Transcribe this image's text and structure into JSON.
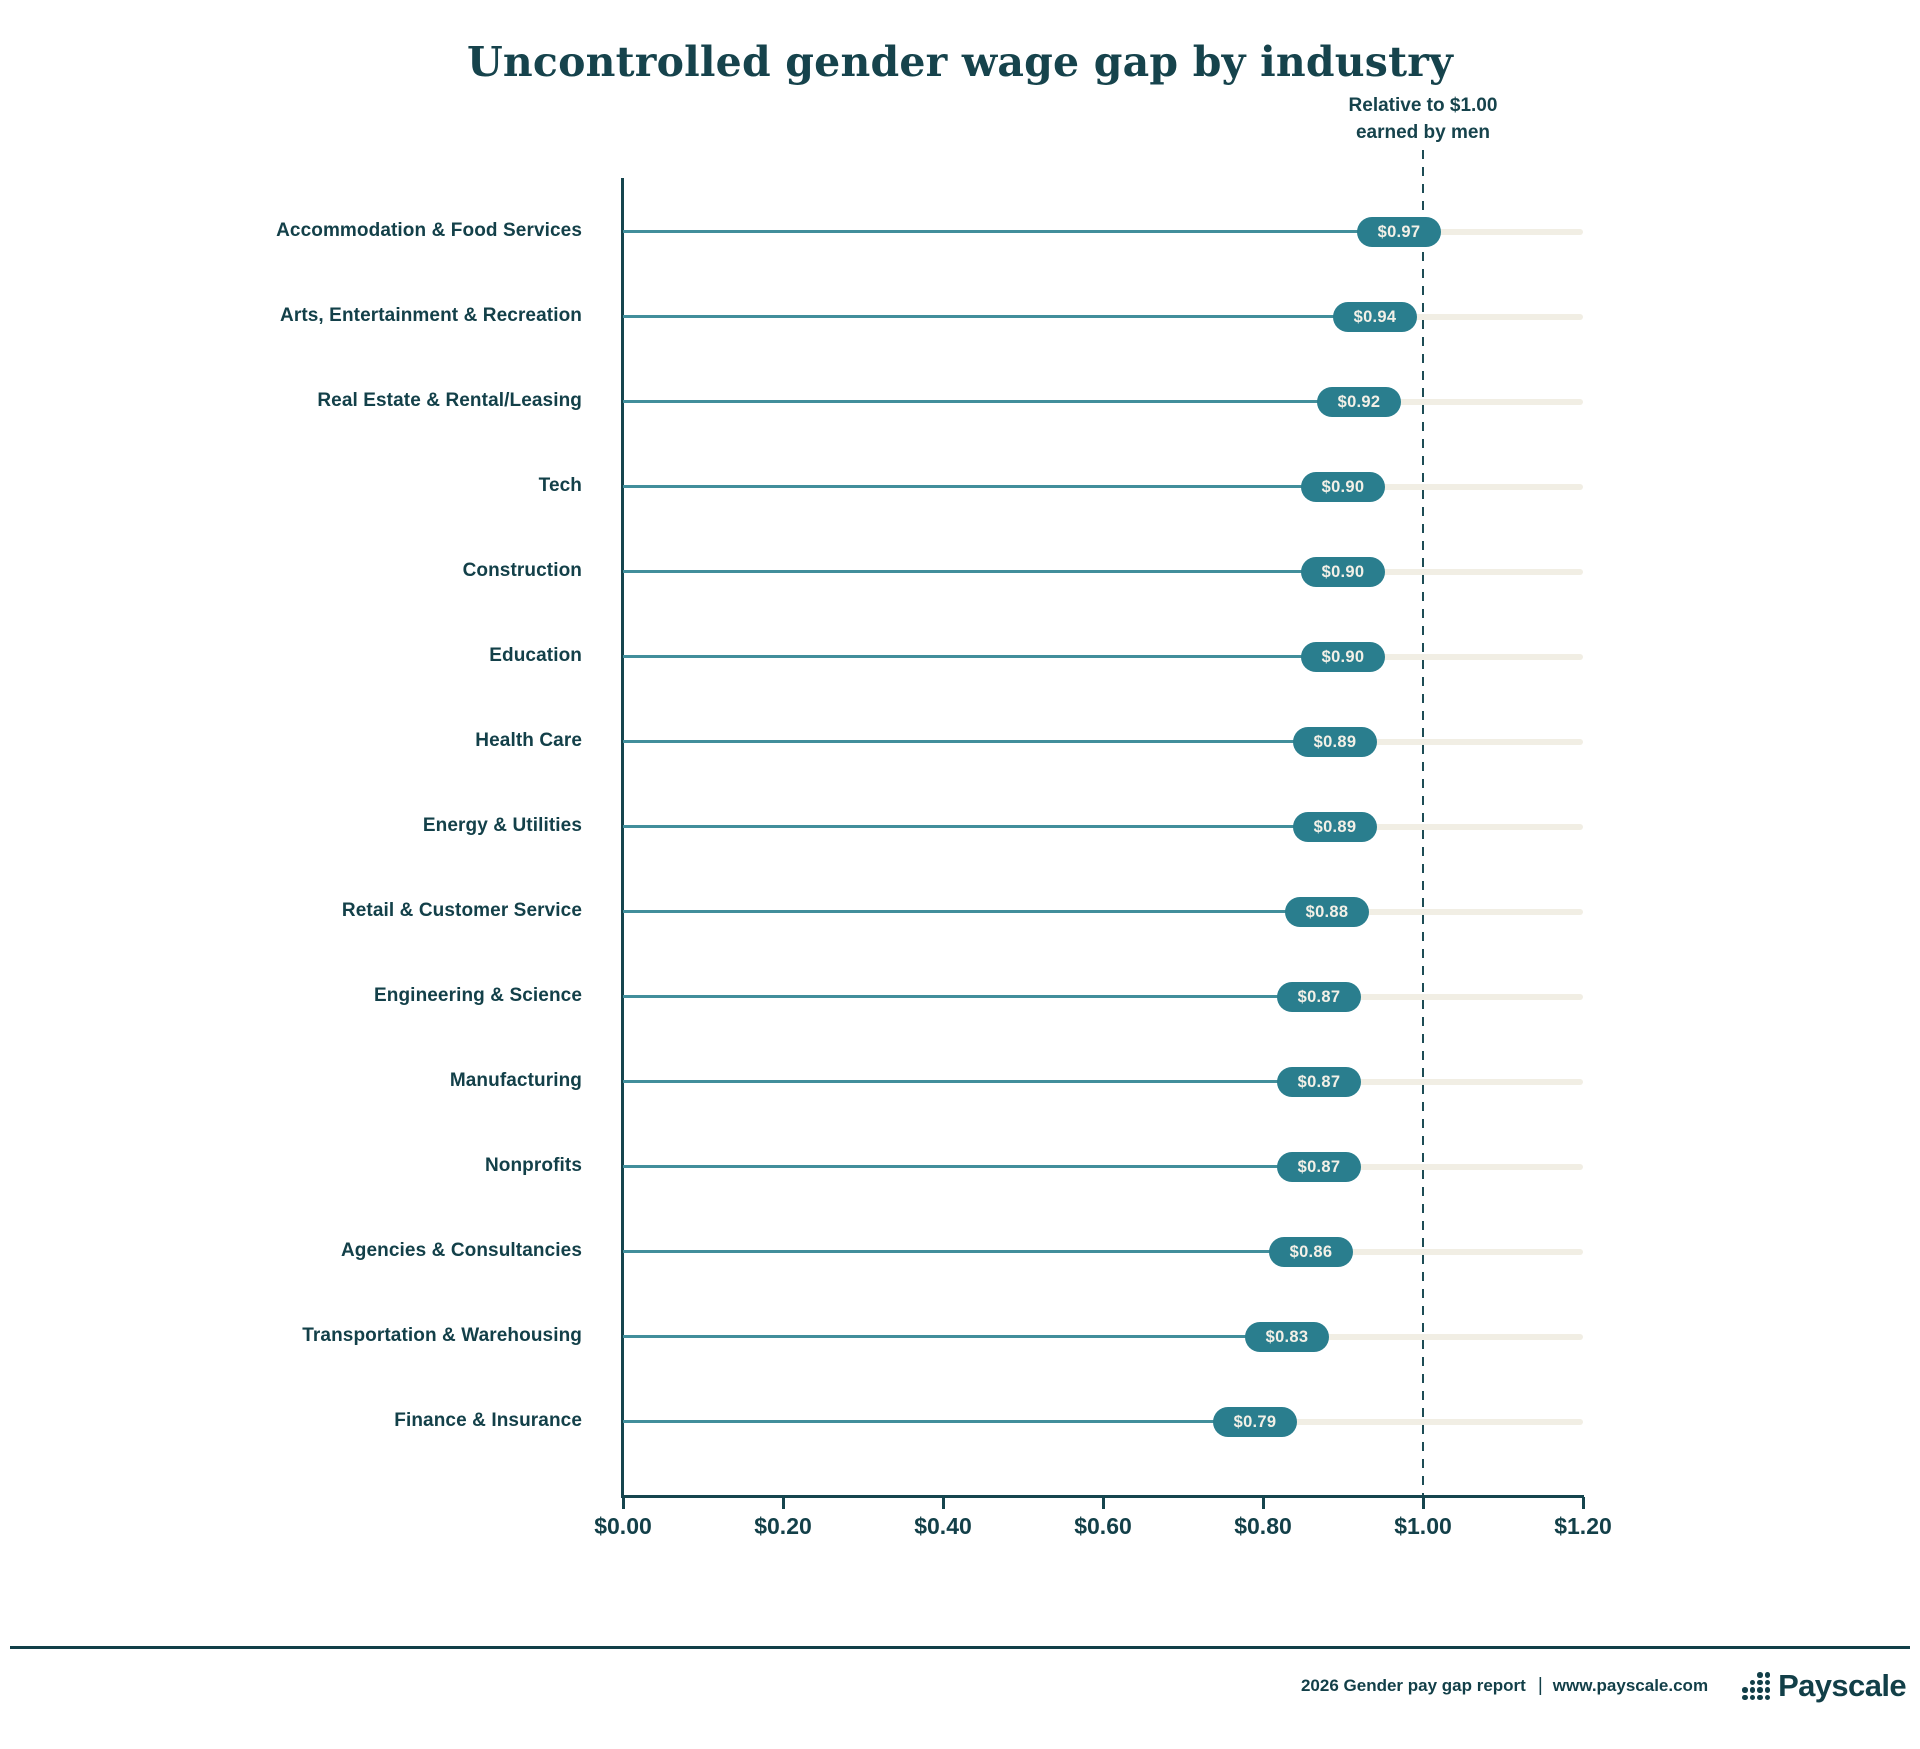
{
  "title": "Uncontrolled gender wage gap by industry",
  "annotation": {
    "line1": "Relative to $1.00",
    "line2": "earned by men"
  },
  "chart_data": {
    "type": "bar",
    "orientation": "horizontal",
    "title": "Uncontrolled gender wage gap by industry",
    "categories": [
      "Accommodation & Food Services",
      "Arts, Entertainment & Recreation",
      "Real Estate & Rental/Leasing",
      "Tech",
      "Construction",
      "Education",
      "Health Care",
      "Energy & Utilities",
      "Retail & Customer Service",
      "Engineering & Science",
      "Manufacturing",
      "Nonprofits",
      "Agencies & Consultancies",
      "Transportation & Warehousing",
      "Finance & Insurance"
    ],
    "values": [
      0.97,
      0.94,
      0.92,
      0.9,
      0.9,
      0.9,
      0.89,
      0.89,
      0.88,
      0.87,
      0.87,
      0.87,
      0.86,
      0.83,
      0.79
    ],
    "value_labels": [
      "$0.97",
      "$0.94",
      "$0.92",
      "$0.90",
      "$0.90",
      "$0.90",
      "$0.89",
      "$0.89",
      "$0.88",
      "$0.87",
      "$0.87",
      "$0.87",
      "$0.86",
      "$0.83",
      "$0.79"
    ],
    "xlim": [
      0,
      1.2
    ],
    "x_ticks": [
      "$0.00",
      "$0.20",
      "$0.40",
      "$0.60",
      "$0.80",
      "$1.00",
      "$1.20"
    ],
    "x_tick_values": [
      0.0,
      0.2,
      0.4,
      0.6,
      0.8,
      1.0,
      1.2
    ],
    "reference_line": {
      "value": 1.0,
      "label": "Relative to $1.00 earned by men",
      "style": "dashed"
    },
    "grid": false,
    "legend": "none",
    "colors": {
      "badge": "#2a7e8e",
      "bar_line": "#418e9b",
      "track": "#f1eee4",
      "axis": "#16454e",
      "text": "#134049",
      "badge_text": "#f3f0e7",
      "reference_line": "#1d4c55"
    }
  },
  "footer": {
    "report": "2026 Gender pay gap report",
    "separator": "|",
    "url": "www.payscale.com",
    "logo_text": "Payscale"
  }
}
